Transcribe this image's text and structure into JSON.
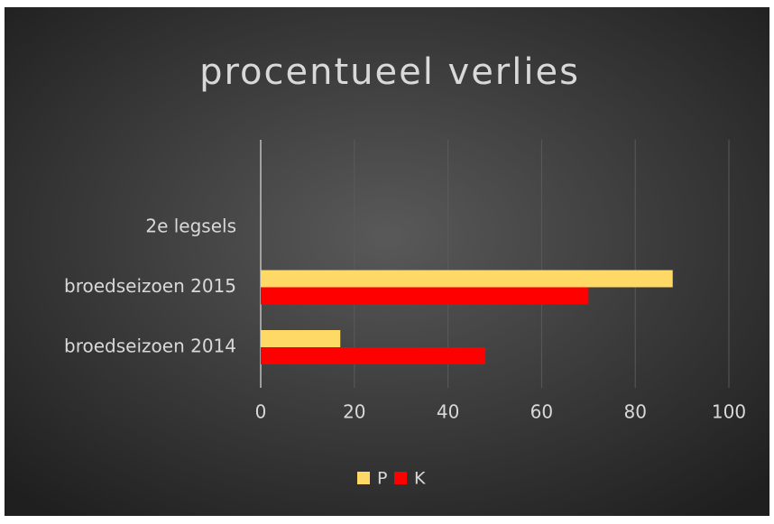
{
  "chart_data": {
    "type": "hbar",
    "title": "procentueel  verlies",
    "categories": [
      "broedseizoen 2014",
      "broedseizoen 2015",
      "2e legsels"
    ],
    "series": [
      {
        "name": "P",
        "color": "#ffd966",
        "values": [
          17,
          88,
          null
        ]
      },
      {
        "name": "K",
        "color": "#ff0000",
        "values": [
          48,
          70,
          null
        ]
      }
    ],
    "xlim": [
      0,
      100
    ],
    "xticks": [
      0,
      20,
      40,
      60,
      80,
      100
    ],
    "grid": true,
    "legend": "bottom"
  }
}
